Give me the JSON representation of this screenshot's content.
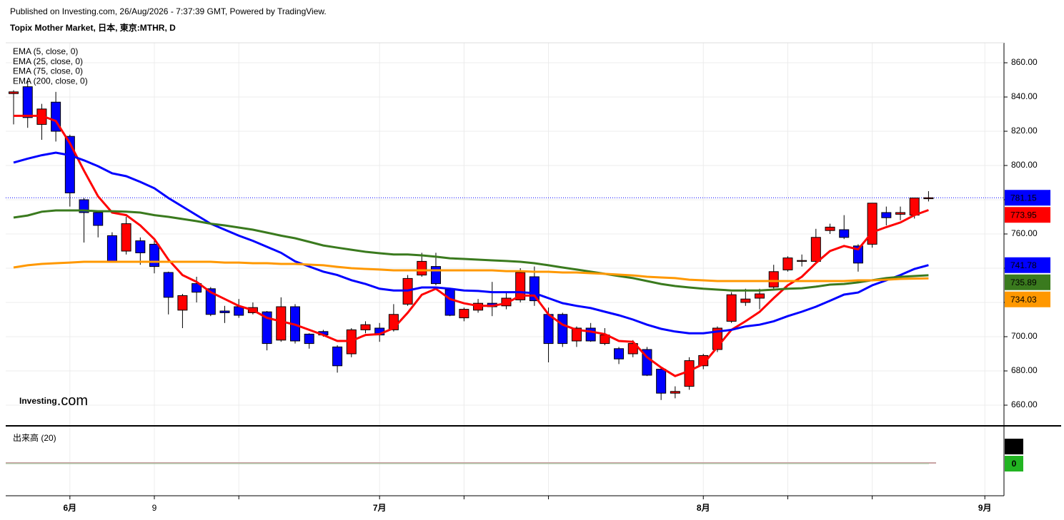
{
  "chart_data": {
    "type": "candlestick",
    "published": "Published on Investing.com, 26/Aug/2026 - 7:37:39 GMT, Powered by TradingView.",
    "title": "Topix Mother Market, 日本, 東京:MTHR, D",
    "logo": "Investing",
    "logo_suffix": ".com",
    "up_color": "#ff0000",
    "down_color": "#0000ff",
    "open": [
      842,
      846,
      824,
      837,
      817,
      780,
      772.5,
      759,
      750,
      756,
      754,
      737.5,
      715.5,
      731,
      728,
      715,
      717.5,
      714,
      714.5,
      698,
      717.5,
      701.5,
      703,
      694,
      690,
      704,
      705,
      704,
      719,
      736,
      741,
      727.5,
      711,
      715.5,
      719.5,
      718,
      721.5,
      735,
      713,
      713,
      697.5,
      705,
      696,
      693,
      690,
      692.5,
      681,
      667,
      671,
      683,
      692.5,
      709,
      720,
      722.5,
      729,
      739,
      744,
      744,
      762,
      762.5,
      753,
      754,
      772.5,
      771.5,
      771,
      780.6
    ],
    "high": [
      844,
      850,
      836,
      843,
      818,
      781,
      773,
      761,
      770,
      758,
      757,
      738,
      725,
      735,
      729,
      718,
      722,
      720,
      715,
      723,
      719,
      702,
      704,
      695,
      705,
      709,
      708,
      719,
      736,
      749,
      749,
      728,
      717,
      722,
      732,
      726,
      740,
      741,
      717,
      714,
      706,
      708,
      705,
      694,
      698,
      694,
      682,
      671,
      688,
      690,
      706,
      726,
      728,
      728,
      742,
      747,
      748,
      763,
      766,
      771,
      754,
      778,
      776,
      776,
      781,
      785
    ],
    "low": [
      824,
      822,
      815,
      814,
      776,
      755,
      758,
      744,
      748,
      742,
      737,
      713,
      705,
      720,
      712,
      708,
      711,
      713,
      692,
      697,
      696,
      693,
      700,
      679,
      688,
      702,
      697,
      703,
      718,
      735,
      730,
      712,
      709,
      714,
      712,
      716,
      720,
      718,
      685,
      694,
      694,
      697,
      695,
      684,
      688,
      677,
      663,
      664,
      669,
      681,
      691,
      708,
      718,
      716,
      728,
      738,
      741,
      743,
      760,
      757,
      738,
      752,
      765,
      768,
      769,
      779
    ],
    "close": [
      843,
      828,
      833,
      820,
      784,
      772.5,
      765,
      744,
      766,
      749,
      741,
      723,
      724,
      726,
      713,
      714,
      712.5,
      717,
      696,
      717.5,
      697.5,
      696,
      701,
      683,
      704,
      707,
      701,
      713,
      734,
      744,
      731,
      712.5,
      716,
      719.5,
      717.5,
      722.5,
      737.5,
      721,
      696,
      696,
      705,
      697.5,
      701,
      687,
      696,
      677.5,
      667,
      668,
      686,
      689,
      705,
      724.5,
      722,
      725,
      738,
      746,
      744.5,
      758,
      764,
      758,
      743,
      778,
      769.5,
      772.5,
      781,
      781.15
    ],
    "series": [
      {
        "name": "EMA (5, close, 0)",
        "color": "#ff0000",
        "values": [
          829,
          829,
          829,
          826,
          813,
          797,
          782,
          772.5,
          771,
          765,
          757,
          745,
          736,
          732,
          726,
          722,
          718,
          715.5,
          711,
          709,
          707,
          704,
          701,
          697.5,
          697.5,
          701,
          701.5,
          705,
          714,
          724.5,
          728,
          722,
          719.5,
          718,
          718,
          719.5,
          724,
          724,
          713,
          707,
          704,
          703,
          701.5,
          697.5,
          697,
          688,
          682,
          677,
          680,
          684,
          694,
          704,
          709,
          714.5,
          722.5,
          730,
          735,
          743,
          750,
          753,
          751,
          761,
          764,
          766.7,
          771,
          773.95
        ]
      },
      {
        "name": "EMA (25, close, 0)",
        "color": "#0000ff",
        "values": [
          801.7,
          804,
          806,
          807.5,
          806,
          803,
          799.6,
          795.4,
          793.75,
          790.4,
          786.7,
          781,
          776,
          771,
          766,
          762.5,
          759,
          756,
          752.5,
          749,
          744,
          741,
          738,
          736,
          733,
          730.8,
          728,
          727,
          727,
          728.75,
          728.75,
          728,
          727,
          726.7,
          726,
          726,
          726,
          725.4,
          722.5,
          719.6,
          718,
          716.7,
          714.6,
          712.5,
          710,
          707,
          704.6,
          703,
          702,
          702,
          703,
          704,
          706,
          707,
          709,
          712,
          714.6,
          717.5,
          721,
          724.6,
          725.8,
          730,
          732.9,
          736,
          739.6,
          741.78
        ]
      },
      {
        "name": "EMA (75, close, 0)",
        "color": "#3a7a1e",
        "values": [
          769.6,
          770.8,
          773,
          773.75,
          773.75,
          773.75,
          773.3,
          773.3,
          773,
          772.5,
          771,
          770,
          768.75,
          767.5,
          766,
          765,
          763.75,
          762.5,
          760.8,
          759,
          757.5,
          755.4,
          753.3,
          752,
          750.8,
          749.6,
          748.75,
          748,
          748,
          747.5,
          746.7,
          745.8,
          745.4,
          745,
          744.6,
          744.2,
          743.75,
          742.9,
          741.7,
          740.4,
          739.2,
          738,
          736.7,
          735.4,
          734.2,
          732.5,
          730.8,
          729.6,
          728.75,
          728,
          727.5,
          727,
          727,
          727,
          727.5,
          728,
          728.3,
          729.2,
          730.4,
          730.8,
          731.7,
          733,
          734.2,
          735,
          735.4,
          735.89
        ]
      },
      {
        "name": "EMA (200, close, 0)",
        "color": "#ff9800",
        "values": [
          740.4,
          741.7,
          742.5,
          742.9,
          743.3,
          743.75,
          743.75,
          743.75,
          743.75,
          743.75,
          743.75,
          743.75,
          743.75,
          743.75,
          743.75,
          743.3,
          743.3,
          742.9,
          742.9,
          742.5,
          742.5,
          742.1,
          741.7,
          740.8,
          740,
          739.6,
          739.2,
          738.75,
          738.75,
          738.75,
          738.75,
          738.75,
          738.75,
          738.75,
          738.75,
          738.3,
          738.3,
          737.9,
          737.9,
          737.5,
          737.5,
          737.1,
          736.7,
          736.25,
          735.8,
          735,
          734.6,
          734.2,
          733.3,
          732.9,
          732.5,
          732.5,
          732.5,
          732.5,
          732.5,
          732.5,
          732.5,
          732.5,
          732.5,
          732.5,
          732.9,
          732.9,
          733.3,
          733.75,
          733.9,
          734.03
        ]
      }
    ],
    "xlim": [
      -0.56,
      70.36
    ],
    "xticks": [
      {
        "value": 4,
        "label": "6月"
      },
      {
        "value": 10,
        "label": "9"
      },
      {
        "value": 26,
        "label": "7月"
      },
      {
        "value": 49,
        "label": "8月"
      },
      {
        "value": 69,
        "label": "9月"
      }
    ],
    "xminor_ticks": [
      16,
      32,
      38,
      55,
      61
    ],
    "ylim": [
      648.33,
      871.67
    ],
    "yticks": [
      {
        "value": 660,
        "label": "660.00"
      },
      {
        "value": 680,
        "label": "680.00"
      },
      {
        "value": 700,
        "label": "700.00"
      },
      {
        "value": 720,
        "label": "720.00"
      },
      {
        "value": 740,
        "label": "740.00"
      },
      {
        "value": 760,
        "label": "760.00"
      },
      {
        "value": 780,
        "label": "780.00"
      },
      {
        "value": 800,
        "label": "800.00"
      },
      {
        "value": 820,
        "label": "820.00"
      },
      {
        "value": 840,
        "label": "840.00"
      },
      {
        "value": 860,
        "label": "860.00"
      }
    ],
    "grid": true,
    "volume": {
      "title": "出来高 (20)",
      "last": 0,
      "ma_last": 0,
      "color": "#000000",
      "ma_color": "#22b422"
    }
  }
}
